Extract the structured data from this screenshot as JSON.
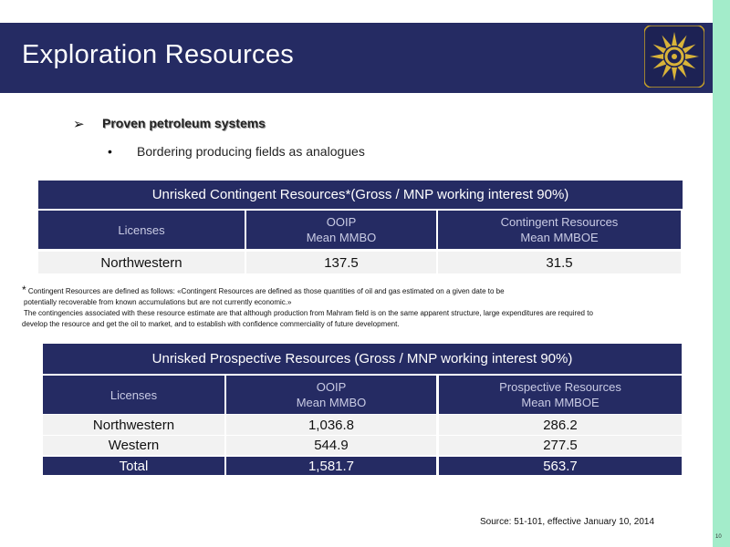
{
  "header": {
    "title": "Exploration Resources",
    "logo_icon": "sun-emblem-logo"
  },
  "bullets": {
    "main_marker": "➢",
    "main": "Proven petroleum systems",
    "sub_marker": "•",
    "sub": "Bordering producing fields as analogues"
  },
  "contingent_table": {
    "title": "Unrisked Contingent Resources*(Gross / MNP working interest 90%)",
    "col_licenses": "Licenses",
    "col_ooip_l1": "OOIP",
    "col_ooip_l2": "Mean  MMBO",
    "col_res_l1": "Contingent Resources",
    "col_res_l2": "Mean MMBOE",
    "rows": [
      {
        "license": "Northwestern",
        "ooip": "137.5",
        "resources": "31.5"
      }
    ]
  },
  "footnote": {
    "star": "*",
    "line1": " Contingent Resources are defined as follows: «Contingent Resources are defined as those quantities of oil and gas estimated on a given date to be",
    "line2": "potentially recoverable from known accumulations but are not currently economic.»",
    "line3": " The contingencies associated with these resource estimate are that although production from Mahram field is on the same apparent structure, large expenditures are required to",
    "line4": "develop the resource and get the oil to market, and to establish with confidence commerciality of future development."
  },
  "prospective_table": {
    "title": "Unrisked Prospective Resources (Gross / MNP working interest 90%)",
    "col_licenses": "Licenses",
    "col_ooip_l1": "OOIP",
    "col_ooip_l2": "Mean  MMBO",
    "col_res_l1": "Prospective Resources",
    "col_res_l2": "Mean MMBOE",
    "rows": [
      {
        "license": "Northwestern",
        "ooip": "1,036.8",
        "resources": "286.2"
      },
      {
        "license": "Western",
        "ooip": "544.9",
        "resources": "277.5"
      }
    ],
    "total": {
      "license": "Total",
      "ooip": "1,581.7",
      "resources": "563.7"
    }
  },
  "source": "Source: 51-101, effective January 10, 2014",
  "page_number": "10",
  "colors": {
    "navy": "#252b63",
    "accent_strip": "#a3ecca",
    "gold": "#c9a227"
  }
}
